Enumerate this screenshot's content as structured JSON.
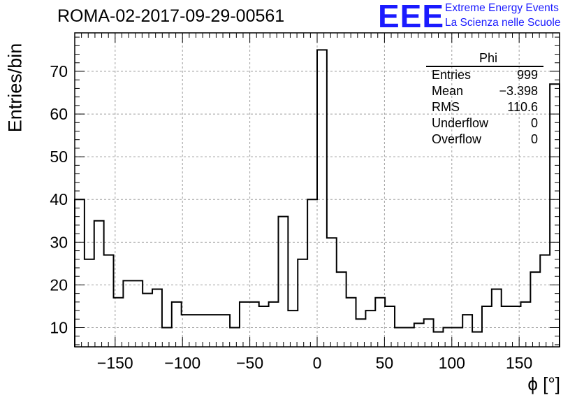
{
  "title": "ROMA-02-2017-09-29-00561",
  "logo": {
    "mark": "EEE",
    "line1": "Extreme Energy Events",
    "line2": "La Scienza nelle Scuole",
    "color": "#1a1aff"
  },
  "stats": {
    "name": "Phi",
    "rows": [
      {
        "label": "Entries",
        "value": "999"
      },
      {
        "label": "Mean",
        "value": "−3.398"
      },
      {
        "label": "RMS",
        "value": "110.6"
      },
      {
        "label": "Underflow",
        "value": "0"
      },
      {
        "label": "Overflow",
        "value": "0"
      }
    ]
  },
  "chart_data": {
    "type": "bar",
    "style": "step-histogram",
    "xlabel": "ϕ [°]",
    "ylabel": "Entries/bin",
    "xlim": [
      -180,
      180
    ],
    "ylim": [
      5.5,
      79
    ],
    "bin_width": 7.2,
    "xticks": [
      -150,
      -100,
      -50,
      0,
      50,
      100,
      150
    ],
    "yticks": [
      10,
      20,
      30,
      40,
      50,
      60,
      70
    ],
    "grid": true,
    "values": [
      40,
      26,
      35,
      27,
      17,
      21,
      21,
      18,
      19,
      10,
      16,
      13,
      13,
      13,
      13,
      13,
      10,
      16,
      16,
      15,
      16,
      36,
      14,
      26,
      40,
      75,
      31,
      23,
      17,
      12,
      14,
      17,
      15,
      10,
      10,
      11,
      12,
      9,
      10,
      10,
      13,
      9,
      15,
      19,
      15,
      15,
      16,
      23,
      27,
      67
    ]
  }
}
